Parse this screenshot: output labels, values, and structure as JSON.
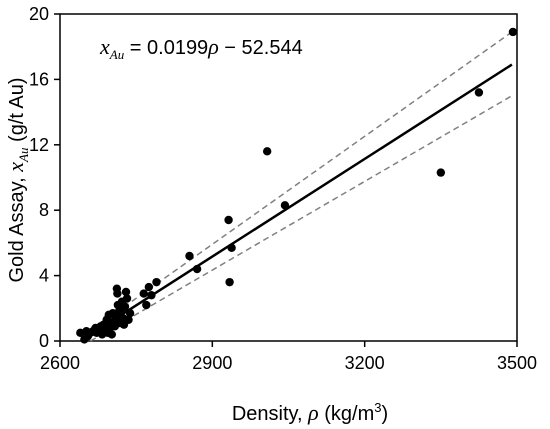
{
  "chart_data": {
    "type": "scatter",
    "xlim": [
      2600,
      3500
    ],
    "ylim": [
      0,
      20
    ],
    "x_ticks": [
      2600,
      2900,
      3200,
      3500
    ],
    "y_ticks": [
      0,
      4,
      8,
      12,
      16,
      20
    ],
    "x_tick_labels": [
      "2600",
      "2900",
      "3200",
      "3500"
    ],
    "y_tick_labels": [
      "0",
      "4",
      "8",
      "12",
      "16",
      "20"
    ],
    "xlabel": "Density, ρ (kg/m³)",
    "ylabel": "Gold Assay, x_Au (g/t Au)",
    "annotation": "x_Au = 0.0199ρ − 52.544",
    "grid": false,
    "colors": {
      "points": "#000000",
      "fit": "#000000",
      "ci": "#808080"
    },
    "points": [
      {
        "x": 2640,
        "y": 0.5
      },
      {
        "x": 2648,
        "y": 0.1
      },
      {
        "x": 2652,
        "y": 0.6
      },
      {
        "x": 2655,
        "y": 0.3
      },
      {
        "x": 2660,
        "y": 0.5
      },
      {
        "x": 2665,
        "y": 0.6
      },
      {
        "x": 2670,
        "y": 0.8
      },
      {
        "x": 2672,
        "y": 0.5
      },
      {
        "x": 2676,
        "y": 0.6
      },
      {
        "x": 2680,
        "y": 0.9
      },
      {
        "x": 2683,
        "y": 0.4
      },
      {
        "x": 2686,
        "y": 1.0
      },
      {
        "x": 2690,
        "y": 0.6
      },
      {
        "x": 2692,
        "y": 1.3
      },
      {
        "x": 2694,
        "y": 0.5
      },
      {
        "x": 2696,
        "y": 1.6
      },
      {
        "x": 2698,
        "y": 0.8
      },
      {
        "x": 2700,
        "y": 1.1
      },
      {
        "x": 2702,
        "y": 0.4
      },
      {
        "x": 2704,
        "y": 1.7
      },
      {
        "x": 2706,
        "y": 1.2
      },
      {
        "x": 2708,
        "y": 0.9
      },
      {
        "x": 2710,
        "y": 1.5
      },
      {
        "x": 2712,
        "y": 3.2
      },
      {
        "x": 2713,
        "y": 2.9
      },
      {
        "x": 2714,
        "y": 2.2
      },
      {
        "x": 2716,
        "y": 1.8
      },
      {
        "x": 2718,
        "y": 1.1
      },
      {
        "x": 2720,
        "y": 1.9
      },
      {
        "x": 2722,
        "y": 2.4
      },
      {
        "x": 2724,
        "y": 1.4
      },
      {
        "x": 2726,
        "y": 1.0
      },
      {
        "x": 2728,
        "y": 2.1
      },
      {
        "x": 2730,
        "y": 3.0
      },
      {
        "x": 2732,
        "y": 2.6
      },
      {
        "x": 2735,
        "y": 1.3
      },
      {
        "x": 2738,
        "y": 1.7
      },
      {
        "x": 2765,
        "y": 2.9
      },
      {
        "x": 2770,
        "y": 2.2
      },
      {
        "x": 2775,
        "y": 3.3
      },
      {
        "x": 2780,
        "y": 2.8
      },
      {
        "x": 2790,
        "y": 3.6
      },
      {
        "x": 2855,
        "y": 5.2
      },
      {
        "x": 2870,
        "y": 4.4
      },
      {
        "x": 2932,
        "y": 7.4
      },
      {
        "x": 2934,
        "y": 3.6
      },
      {
        "x": 2938,
        "y": 5.7
      },
      {
        "x": 3008,
        "y": 11.6
      },
      {
        "x": 3043,
        "y": 8.3
      },
      {
        "x": 3350,
        "y": 10.3
      },
      {
        "x": 3425,
        "y": 15.2
      },
      {
        "x": 3492,
        "y": 18.9
      }
    ],
    "fit_line": {
      "slope": 0.0199,
      "intercept": -52.544,
      "x_range": [
        2645,
        3490
      ]
    },
    "confidence_band": {
      "upper": [
        {
          "x": 2645,
          "y": 0.3
        },
        {
          "x": 3490,
          "y": 18.9
        }
      ],
      "lower": [
        {
          "x": 2660,
          "y": 0.0
        },
        {
          "x": 3490,
          "y": 15.0
        }
      ]
    }
  }
}
